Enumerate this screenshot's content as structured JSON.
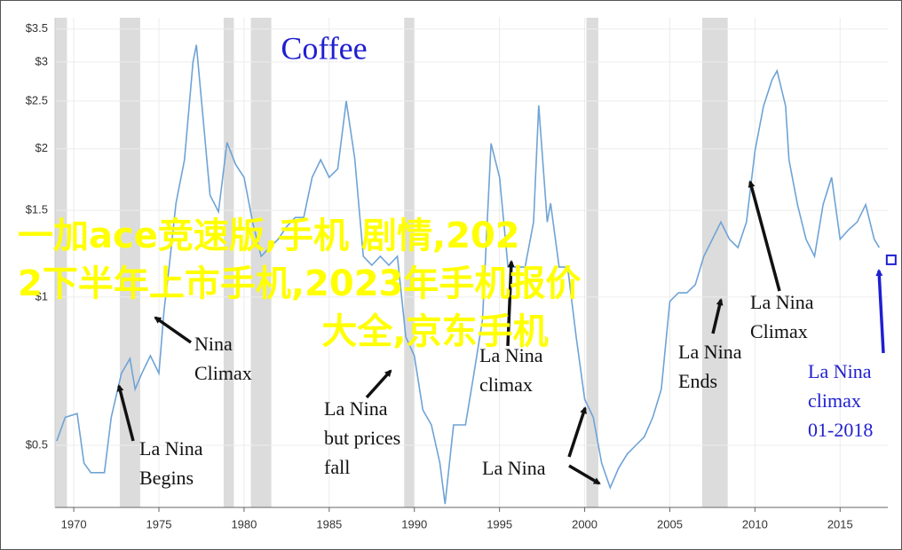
{
  "chart_data": {
    "type": "line",
    "title": "Coffee",
    "title_color": "#1f1fd0",
    "x": [
      1969.0,
      1969.5,
      1970.2,
      1970.6,
      1971.0,
      1971.8,
      1972.2,
      1972.8,
      1973.3,
      1973.6,
      1974.0,
      1974.5,
      1975.0,
      1975.3,
      1975.6,
      1976.0,
      1976.5,
      1977.0,
      1977.2,
      1977.5,
      1978.0,
      1978.5,
      1979.0,
      1979.5,
      1980.0,
      1980.5,
      1981.0,
      1981.5,
      1982.0,
      1982.5,
      1983.0,
      1983.5,
      1984.0,
      1984.5,
      1985.0,
      1985.5,
      1986.0,
      1986.5,
      1987.0,
      1987.5,
      1988.0,
      1988.5,
      1989.0,
      1989.5,
      1990.0,
      1990.5,
      1991.0,
      1991.5,
      1991.8,
      1992.3,
      1993.0,
      1993.5,
      1994.0,
      1994.5,
      1995.0,
      1995.5,
      1996.0,
      1996.5,
      1997.0,
      1997.3,
      1997.8,
      1998.0,
      1998.5,
      1999.0,
      1999.5,
      2000.0,
      2000.5,
      2001.0,
      2001.5,
      2002.0,
      2002.5,
      2003.0,
      2003.5,
      2004.0,
      2004.5,
      2005.0,
      2005.5,
      2006.0,
      2006.5,
      2007.0,
      2007.5,
      2008.0,
      2008.5,
      2009.0,
      2009.5,
      2010.0,
      2010.5,
      2011.0,
      2011.3,
      2011.8,
      2012.0,
      2012.5,
      2013.0,
      2013.5,
      2014.0,
      2014.5,
      2015.0,
      2015.5,
      2016.0,
      2016.5,
      2017.0,
      2017.3
    ],
    "values": [
      0.51,
      0.57,
      0.58,
      0.46,
      0.44,
      0.44,
      0.57,
      0.7,
      0.75,
      0.65,
      0.7,
      0.76,
      0.7,
      0.94,
      1.15,
      1.55,
      1.9,
      3.0,
      3.25,
      2.5,
      1.61,
      1.49,
      2.06,
      1.86,
      1.75,
      1.42,
      1.21,
      1.26,
      1.31,
      1.39,
      1.45,
      1.45,
      1.75,
      1.9,
      1.75,
      1.82,
      2.5,
      1.91,
      1.21,
      1.16,
      1.21,
      1.16,
      1.21,
      0.83,
      0.76,
      0.59,
      0.55,
      0.46,
      0.38,
      0.55,
      0.55,
      0.7,
      0.9,
      2.05,
      1.75,
      1.15,
      1.15,
      1.15,
      1.42,
      2.45,
      1.42,
      1.55,
      1.15,
      1.15,
      0.83,
      0.62,
      0.57,
      0.46,
      0.41,
      0.45,
      0.48,
      0.5,
      0.52,
      0.57,
      0.65,
      0.98,
      1.02,
      1.02,
      1.06,
      1.21,
      1.31,
      1.42,
      1.31,
      1.26,
      1.42,
      1.98,
      2.44,
      2.76,
      2.88,
      2.44,
      1.9,
      1.54,
      1.31,
      1.21,
      1.54,
      1.75,
      1.31,
      1.37,
      1.42,
      1.54,
      1.31,
      1.26
    ],
    "color": "#6fa3d6",
    "marker": {
      "x": 2018.0,
      "value": 1.19,
      "color": "#1f1fd0"
    },
    "bands": [
      [
        1968.9,
        1969.6
      ],
      [
        1972.7,
        1973.9
      ],
      [
        1978.8,
        1979.4
      ],
      [
        1980.4,
        1981.6
      ],
      [
        1989.4,
        1990.0
      ],
      [
        2000.1,
        2000.8
      ],
      [
        2006.9,
        2008.4
      ]
    ],
    "xlim": [
      1968.9,
      2017.8
    ],
    "xticks": [
      1970,
      1975,
      1980,
      1985,
      1990,
      1995,
      2000,
      2005,
      2010,
      2015
    ],
    "ylim": [
      0.374,
      3.69
    ],
    "log_scale": true,
    "grid": true,
    "yticks": [
      {
        "value": 0.5,
        "label": "$0.5"
      },
      {
        "value": 1,
        "label": "$1"
      },
      {
        "value": 1.5,
        "label": "$1.5"
      },
      {
        "value": 2,
        "label": "$2"
      },
      {
        "value": 2.5,
        "label": "$2.5"
      },
      {
        "value": 3,
        "label": "$3"
      },
      {
        "value": 3.5,
        "label": "$3.5"
      }
    ],
    "annotations": [
      {
        "lines": [
          "La Nina",
          "Begins"
        ],
        "color": "#111"
      },
      {
        "lines": [
          "Nina",
          "Climax"
        ],
        "color": "#111"
      },
      {
        "lines": [
          "La Nina",
          "but prices",
          "fall"
        ],
        "color": "#111"
      },
      {
        "lines": [
          "La Nina",
          "climax"
        ],
        "color": "#111"
      },
      {
        "lines": [
          "La Nina"
        ],
        "color": "#111"
      },
      {
        "lines": [
          "La Nina",
          "Ends"
        ],
        "color": "#111"
      },
      {
        "lines": [
          "La Nina",
          "Climax"
        ],
        "color": "#111"
      },
      {
        "lines": [
          "La Nina",
          "climax",
          "01-2018"
        ],
        "color": "#1f1fd0"
      }
    ]
  },
  "overlay_text": [
    "一加ace竞速版,手机 剧情,202",
    "2下半年上市手机,2023年手机报价",
    "大全,京东手机"
  ]
}
